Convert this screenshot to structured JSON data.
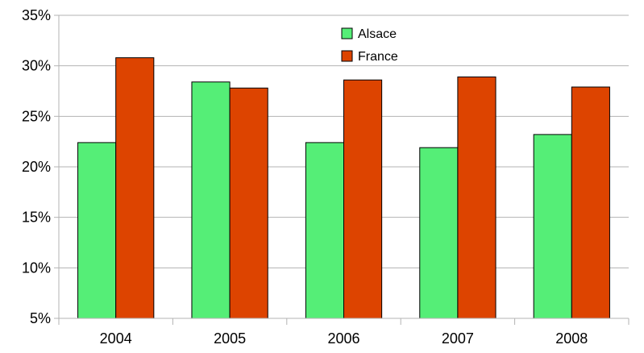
{
  "chart_data": {
    "type": "bar",
    "categories": [
      "2004",
      "2005",
      "2006",
      "2007",
      "2008"
    ],
    "series": [
      {
        "name": "Alsace",
        "values": [
          22.4,
          28.4,
          22.4,
          21.9,
          23.2
        ],
        "color": "#55ee77"
      },
      {
        "name": "France",
        "values": [
          30.8,
          27.8,
          28.6,
          28.9,
          27.9
        ],
        "color": "#dd4400"
      }
    ],
    "ylim": [
      5,
      35
    ],
    "yticks": [
      5,
      10,
      15,
      20,
      25,
      30,
      35
    ],
    "ytick_labels": [
      "5%",
      "10%",
      "15%",
      "20%",
      "25%",
      "30%",
      "35%"
    ],
    "grid": true,
    "legend_position": "top-center"
  }
}
